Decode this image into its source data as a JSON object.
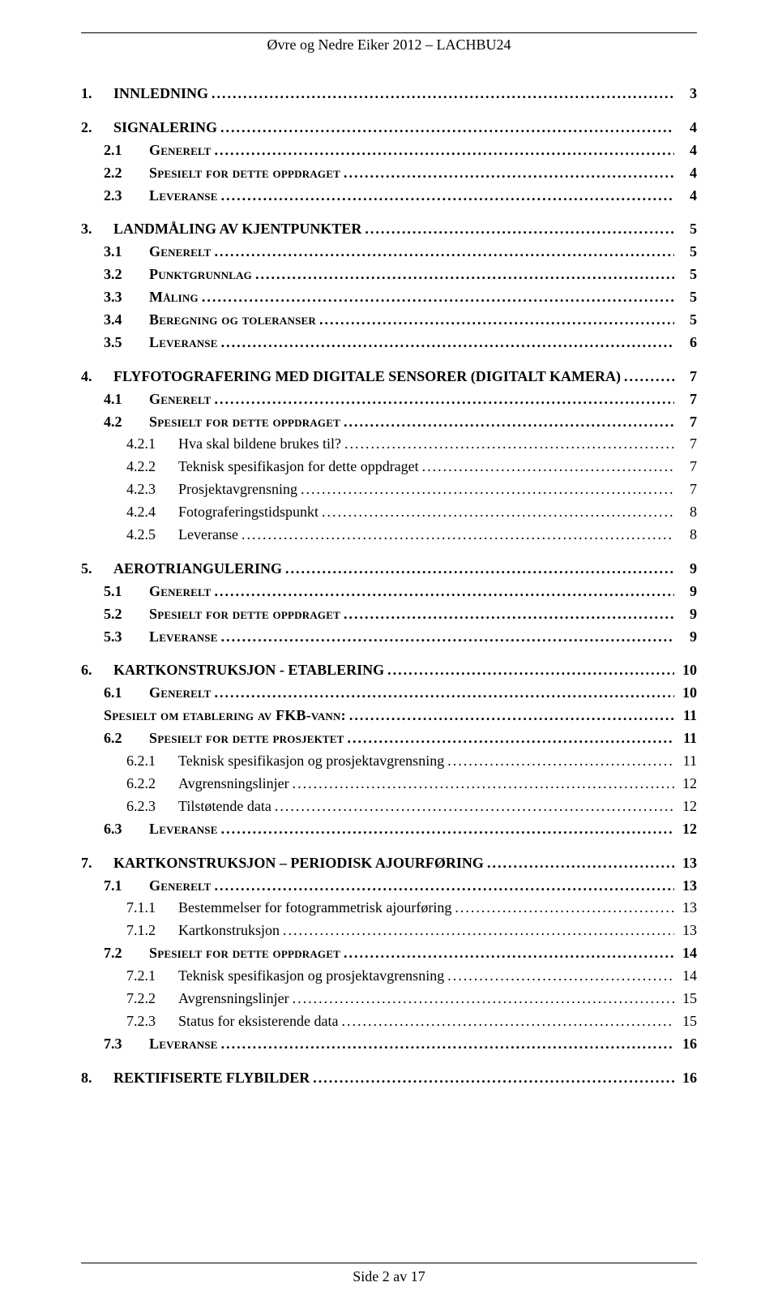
{
  "colors": {
    "text": "#000000",
    "background": "#ffffff",
    "rule": "#000000"
  },
  "typography": {
    "family": "Times New Roman",
    "base_size_pt": 12,
    "header_size_pt": 12,
    "footer_size_pt": 12
  },
  "header": "Øvre og Nedre Eiker 2012 – LACHBU24",
  "footer": "Side 2 av 17",
  "toc": [
    {
      "level": 1,
      "num": "1.",
      "label": "INNLEDNING",
      "page": "3"
    },
    {
      "level": 1,
      "num": "2.",
      "label": "SIGNALERING",
      "page": "4"
    },
    {
      "level": 2,
      "num": "2.1",
      "label": "Generelt",
      "page": "4"
    },
    {
      "level": 2,
      "num": "2.2",
      "label": "Spesielt for dette oppdraget",
      "page": "4"
    },
    {
      "level": 2,
      "num": "2.3",
      "label": "Leveranse",
      "page": "4"
    },
    {
      "level": 1,
      "num": "3.",
      "label": "LANDMÅLING AV KJENTPUNKTER",
      "page": "5"
    },
    {
      "level": 2,
      "num": "3.1",
      "label": "Generelt",
      "page": "5"
    },
    {
      "level": 2,
      "num": "3.2",
      "label": "Punktgrunnlag",
      "page": "5"
    },
    {
      "level": 2,
      "num": "3.3",
      "label": "Måling",
      "page": "5"
    },
    {
      "level": 2,
      "num": "3.4",
      "label": "Beregning og toleranser",
      "page": "5"
    },
    {
      "level": 2,
      "num": "3.5",
      "label": "Leveranse",
      "page": "6"
    },
    {
      "level": 1,
      "num": "4.",
      "label": "FLYFOTOGRAFERING MED DIGITALE SENSORER (DIGITALT KAMERA)",
      "page": "7"
    },
    {
      "level": 2,
      "num": "4.1",
      "label": "Generelt",
      "page": "7"
    },
    {
      "level": 2,
      "num": "4.2",
      "label": "Spesielt for dette oppdraget",
      "page": "7"
    },
    {
      "level": 3,
      "num": "4.2.1",
      "label": "Hva skal bildene brukes til?",
      "page": "7"
    },
    {
      "level": 3,
      "num": "4.2.2",
      "label": "Teknisk spesifikasjon for dette oppdraget",
      "page": "7"
    },
    {
      "level": 3,
      "num": "4.2.3",
      "label": "Prosjektavgrensning",
      "page": "7"
    },
    {
      "level": 3,
      "num": "4.2.4",
      "label": "Fotograferingstidspunkt",
      "page": "8"
    },
    {
      "level": 3,
      "num": "4.2.5",
      "label": "Leveranse",
      "page": "8"
    },
    {
      "level": 1,
      "num": "5.",
      "label": "AEROTRIANGULERING",
      "page": "9"
    },
    {
      "level": 2,
      "num": "5.1",
      "label": "Generelt",
      "page": "9"
    },
    {
      "level": 2,
      "num": "5.2",
      "label": "Spesielt for dette oppdraget",
      "page": "9"
    },
    {
      "level": 2,
      "num": "5.3",
      "label": "Leveranse",
      "page": "9"
    },
    {
      "level": 1,
      "num": "6.",
      "label": "KARTKONSTRUKSJON - ETABLERING",
      "page": "10"
    },
    {
      "level": 2,
      "num": "6.1",
      "label": "Generelt",
      "page": "10"
    },
    {
      "level": 2,
      "num": "",
      "label": "Spesielt om etablering av FKB-vann:",
      "page": "11",
      "plain": true
    },
    {
      "level": 2,
      "num": "6.2",
      "label": "Spesielt for dette prosjektet",
      "page": "11"
    },
    {
      "level": 3,
      "num": "6.2.1",
      "label": "Teknisk spesifikasjon og prosjektavgrensning",
      "page": "11"
    },
    {
      "level": 3,
      "num": "6.2.2",
      "label": "Avgrensningslinjer",
      "page": "12"
    },
    {
      "level": 3,
      "num": "6.2.3",
      "label": "Tilstøtende data",
      "page": "12"
    },
    {
      "level": 2,
      "num": "6.3",
      "label": "Leveranse",
      "page": "12"
    },
    {
      "level": 1,
      "num": "7.",
      "label": "KARTKONSTRUKSJON – PERIODISK AJOURFØRING",
      "page": "13"
    },
    {
      "level": 2,
      "num": "7.1",
      "label": "Generelt",
      "page": "13"
    },
    {
      "level": 3,
      "num": "7.1.1",
      "label": "Bestemmelser for fotogrammetrisk ajourføring",
      "page": "13"
    },
    {
      "level": 3,
      "num": "7.1.2",
      "label": "Kartkonstruksjon",
      "page": "13"
    },
    {
      "level": 2,
      "num": "7.2",
      "label": "Spesielt for dette oppdraget",
      "page": "14"
    },
    {
      "level": 3,
      "num": "7.2.1",
      "label": "Teknisk spesifikasjon og prosjektavgrensning",
      "page": "14"
    },
    {
      "level": 3,
      "num": "7.2.2",
      "label": "Avgrensningslinjer",
      "page": "15"
    },
    {
      "level": 3,
      "num": "7.2.3",
      "label": "Status for eksisterende data",
      "page": "15"
    },
    {
      "level": 2,
      "num": "7.3",
      "label": "Leveranse",
      "page": "16"
    },
    {
      "level": 1,
      "num": "8.",
      "label": "REKTIFISERTE FLYBILDER",
      "page": "16"
    }
  ]
}
